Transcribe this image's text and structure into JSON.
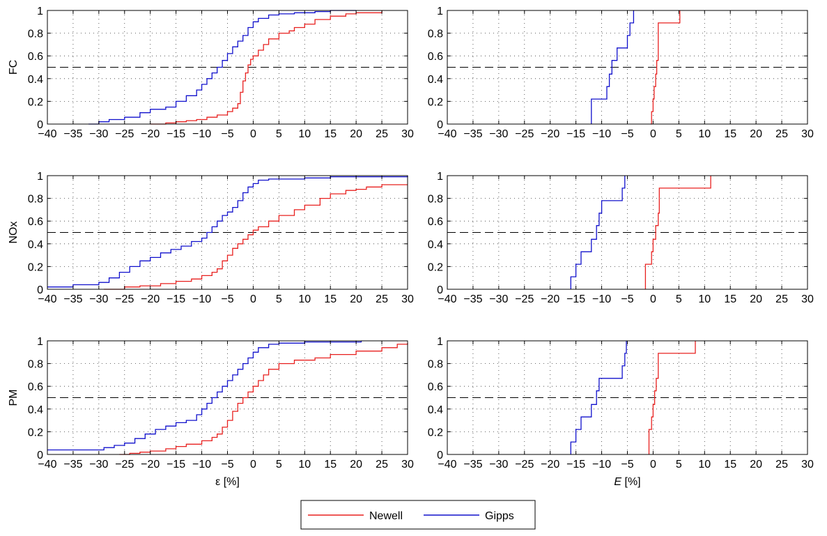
{
  "colors": {
    "newell": "#e8201f",
    "gipps": "#1010cc",
    "reference": "#000000",
    "grid": "#333333"
  },
  "legend": {
    "position": "bottom-center",
    "entries": [
      {
        "label": "Newell",
        "color": "#e8201f"
      },
      {
        "label": "Gipps",
        "color": "#1010cc"
      }
    ]
  },
  "chart_data": [
    {
      "type": "line",
      "row_label": "FC",
      "xlabel": "",
      "ylabel": "FC",
      "xlim": [
        -40,
        30
      ],
      "ylim": [
        0,
        1
      ],
      "grid": true,
      "reference_y": 0.5,
      "xticks": [
        "−40",
        "−35",
        "−30",
        "−25",
        "−20",
        "−15",
        "−10",
        "−5",
        "0",
        "5",
        "10",
        "15",
        "20",
        "25",
        "30"
      ],
      "yticks": [
        "0",
        "0.2",
        "0.4",
        "0.6",
        "0.8",
        "1"
      ],
      "series": [
        {
          "name": "Newell",
          "step": true,
          "x": [
            -20,
            -17,
            -15,
            -13,
            -11,
            -9,
            -7,
            -5,
            -4,
            -3,
            -2.5,
            -2,
            -1.5,
            -1,
            -0.5,
            0,
            1,
            2,
            3,
            5,
            7,
            8,
            10,
            12,
            15,
            18,
            20,
            25
          ],
          "y": [
            0,
            0.01,
            0.02,
            0.03,
            0.04,
            0.06,
            0.08,
            0.11,
            0.14,
            0.18,
            0.28,
            0.38,
            0.45,
            0.52,
            0.57,
            0.6,
            0.65,
            0.7,
            0.75,
            0.8,
            0.82,
            0.85,
            0.88,
            0.92,
            0.95,
            0.97,
            0.98,
            1.0
          ]
        },
        {
          "name": "Gipps",
          "step": true,
          "x": [
            -32,
            -30,
            -28,
            -25,
            -22,
            -20,
            -17,
            -15,
            -13,
            -11,
            -10,
            -9,
            -8,
            -7,
            -6,
            -5,
            -4,
            -3,
            -2,
            -1,
            0,
            1,
            3,
            5,
            8,
            12,
            15,
            20
          ],
          "y": [
            0,
            0.02,
            0.04,
            0.06,
            0.1,
            0.13,
            0.15,
            0.2,
            0.25,
            0.3,
            0.35,
            0.4,
            0.45,
            0.5,
            0.56,
            0.62,
            0.68,
            0.73,
            0.78,
            0.85,
            0.9,
            0.93,
            0.96,
            0.97,
            0.98,
            0.99,
            1.0,
            1.0
          ]
        }
      ]
    },
    {
      "type": "line",
      "row_label": "FC",
      "xlabel": "",
      "ylabel": "",
      "xlim": [
        -40,
        30
      ],
      "ylim": [
        0,
        1
      ],
      "grid": true,
      "reference_y": 0.5,
      "xticks": [
        "−40",
        "−35",
        "−30",
        "−25",
        "−20",
        "−15",
        "−10",
        "−5",
        "0",
        "5",
        "10",
        "15",
        "20",
        "25",
        "30"
      ],
      "yticks": [
        "0",
        "0.2",
        "0.4",
        "0.6",
        "0.8",
        "1"
      ],
      "series": [
        {
          "name": "Newell",
          "step": true,
          "x": [
            -0.5,
            -0.3,
            0,
            0.2,
            0.5,
            0.7,
            1,
            5,
            5.2
          ],
          "y": [
            0,
            0.11,
            0.22,
            0.33,
            0.44,
            0.56,
            0.89,
            0.89,
            1.0
          ]
        },
        {
          "name": "Gipps",
          "step": true,
          "x": [
            -12,
            -12,
            -9,
            -8.5,
            -8,
            -7,
            -6,
            -5,
            -4.5,
            -4,
            -3.8
          ],
          "y": [
            0,
            0.22,
            0.33,
            0.44,
            0.56,
            0.67,
            0.67,
            0.78,
            0.89,
            0.89,
            1.0
          ]
        }
      ]
    },
    {
      "type": "line",
      "row_label": "NOx",
      "xlabel": "",
      "ylabel": "NOx",
      "xlim": [
        -40,
        30
      ],
      "ylim": [
        0,
        1
      ],
      "grid": true,
      "reference_y": 0.5,
      "xticks": [
        "−40",
        "−35",
        "−30",
        "−25",
        "−20",
        "−15",
        "−10",
        "−5",
        "0",
        "5",
        "10",
        "15",
        "20",
        "25",
        "30"
      ],
      "yticks": [
        "0",
        "0.2",
        "0.4",
        "0.6",
        "0.8",
        "1"
      ],
      "series": [
        {
          "name": "Newell",
          "step": true,
          "x": [
            -29,
            -25,
            -22,
            -18,
            -15,
            -12,
            -10,
            -8,
            -7,
            -6,
            -5,
            -4,
            -3,
            -2,
            -1,
            0,
            1,
            3,
            5,
            8,
            10,
            13,
            15,
            18,
            20,
            22,
            25,
            30
          ],
          "y": [
            0,
            0.02,
            0.03,
            0.05,
            0.07,
            0.09,
            0.12,
            0.15,
            0.18,
            0.25,
            0.3,
            0.36,
            0.4,
            0.44,
            0.48,
            0.52,
            0.55,
            0.6,
            0.65,
            0.7,
            0.74,
            0.8,
            0.84,
            0.87,
            0.88,
            0.9,
            0.92,
            0.92
          ]
        },
        {
          "name": "Gipps",
          "step": true,
          "x": [
            -40,
            -35,
            -30,
            -28,
            -26,
            -24,
            -22,
            -20,
            -18,
            -16,
            -14,
            -12,
            -10,
            -9,
            -8,
            -7,
            -6,
            -5,
            -4,
            -3,
            -2,
            -1,
            0,
            1,
            3,
            10,
            15,
            30
          ],
          "y": [
            0.02,
            0.04,
            0.06,
            0.1,
            0.15,
            0.2,
            0.25,
            0.28,
            0.32,
            0.35,
            0.38,
            0.42,
            0.45,
            0.5,
            0.55,
            0.6,
            0.65,
            0.68,
            0.72,
            0.78,
            0.85,
            0.9,
            0.93,
            0.96,
            0.97,
            0.98,
            0.99,
            1.0
          ]
        }
      ]
    },
    {
      "type": "line",
      "row_label": "NOx",
      "xlabel": "",
      "ylabel": "",
      "xlim": [
        -40,
        30
      ],
      "ylim": [
        0,
        1
      ],
      "grid": true,
      "reference_y": 0.5,
      "xticks": [
        "−40",
        "−35",
        "−30",
        "−25",
        "−20",
        "−15",
        "−10",
        "−5",
        "0",
        "5",
        "10",
        "15",
        "20",
        "25",
        "30"
      ],
      "yticks": [
        "0",
        "0.2",
        "0.4",
        "0.6",
        "0.8",
        "1"
      ],
      "series": [
        {
          "name": "Newell",
          "step": true,
          "x": [
            -1.5,
            -1.5,
            -0.3,
            0,
            0.5,
            1,
            1.2,
            11,
            11.2
          ],
          "y": [
            0,
            0.22,
            0.33,
            0.44,
            0.56,
            0.67,
            0.89,
            0.89,
            1.0
          ]
        },
        {
          "name": "Gipps",
          "step": true,
          "x": [
            -16,
            -16,
            -15,
            -14,
            -12,
            -11,
            -10.5,
            -10,
            -8,
            -6,
            -5.5
          ],
          "y": [
            0,
            0.11,
            0.22,
            0.33,
            0.44,
            0.56,
            0.67,
            0.78,
            0.78,
            0.89,
            1.0
          ]
        }
      ]
    },
    {
      "type": "line",
      "row_label": "PM",
      "xlabel": "ε [%]",
      "ylabel": "PM",
      "xlim": [
        -40,
        30
      ],
      "ylim": [
        0,
        1
      ],
      "grid": true,
      "reference_y": 0.5,
      "xticks": [
        "−40",
        "−35",
        "−30",
        "−25",
        "−20",
        "−15",
        "−10",
        "−5",
        "0",
        "5",
        "10",
        "15",
        "20",
        "25",
        "30"
      ],
      "yticks": [
        "0",
        "0.2",
        "0.4",
        "0.6",
        "0.8",
        "1"
      ],
      "series": [
        {
          "name": "Newell",
          "step": true,
          "x": [
            -26,
            -24,
            -22,
            -20,
            -17,
            -15,
            -13,
            -10,
            -8,
            -7,
            -6,
            -5,
            -4,
            -3,
            -2,
            -1,
            0,
            1,
            2,
            3,
            5,
            8,
            12,
            15,
            20,
            25,
            28,
            30
          ],
          "y": [
            0,
            0.01,
            0.02,
            0.03,
            0.05,
            0.07,
            0.09,
            0.12,
            0.15,
            0.18,
            0.24,
            0.3,
            0.38,
            0.45,
            0.5,
            0.55,
            0.6,
            0.65,
            0.7,
            0.75,
            0.8,
            0.83,
            0.85,
            0.88,
            0.91,
            0.94,
            0.97,
            0.98
          ]
        },
        {
          "name": "Gipps",
          "step": true,
          "x": [
            -40,
            -29,
            -27,
            -25,
            -23,
            -21,
            -19,
            -17,
            -15,
            -13,
            -11,
            -10,
            -9,
            -8,
            -7,
            -6,
            -5,
            -4,
            -3,
            -2,
            -1,
            0,
            1,
            3,
            5,
            10,
            15,
            21
          ],
          "y": [
            0.04,
            0.06,
            0.08,
            0.1,
            0.14,
            0.18,
            0.22,
            0.25,
            0.28,
            0.3,
            0.35,
            0.4,
            0.45,
            0.5,
            0.55,
            0.6,
            0.65,
            0.7,
            0.75,
            0.8,
            0.85,
            0.9,
            0.94,
            0.97,
            0.98,
            0.99,
            0.99,
            1.0
          ]
        }
      ]
    },
    {
      "type": "line",
      "row_label": "PM",
      "xlabel": "E [%]",
      "ylabel": "",
      "xlim": [
        -40,
        30
      ],
      "ylim": [
        0,
        1
      ],
      "grid": true,
      "reference_y": 0.5,
      "xticks": [
        "−40",
        "−35",
        "−30",
        "−25",
        "−20",
        "−15",
        "−10",
        "−5",
        "0",
        "5",
        "10",
        "15",
        "20",
        "25",
        "30"
      ],
      "yticks": [
        "0",
        "0.2",
        "0.4",
        "0.6",
        "0.8",
        "1"
      ],
      "series": [
        {
          "name": "Newell",
          "step": true,
          "x": [
            -0.8,
            -0.8,
            -0.3,
            0,
            0.3,
            0.6,
            1,
            8,
            8.2
          ],
          "y": [
            0,
            0.22,
            0.33,
            0.44,
            0.56,
            0.67,
            0.89,
            0.89,
            1.0
          ]
        },
        {
          "name": "Gipps",
          "step": true,
          "x": [
            -16,
            -16,
            -15,
            -14,
            -13,
            -12,
            -11,
            -10.5,
            -10,
            -6,
            -5.5,
            -5.2
          ],
          "y": [
            0,
            0.11,
            0.22,
            0.33,
            0.33,
            0.44,
            0.56,
            0.67,
            0.67,
            0.78,
            0.89,
            1.0
          ]
        }
      ]
    }
  ]
}
